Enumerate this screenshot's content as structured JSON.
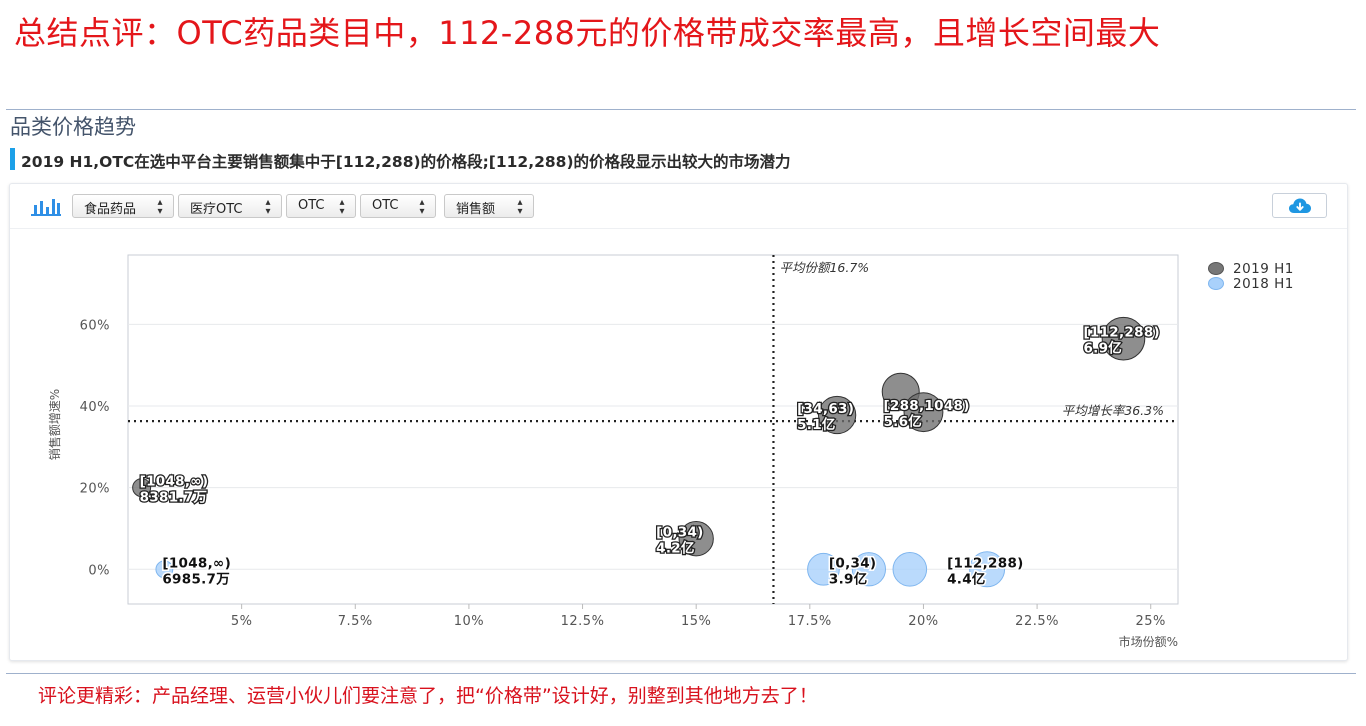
{
  "headline": "总结点评：OTC药品类目中，112-288元的价格带成交率最高，且增长空间最大",
  "section_title": "品类价格趋势",
  "subtitle": "2019 H1,OTC在选中平台主要销售额集中于[112,288)的价格段;[112,288)的价格段显示出较大的市场潜力",
  "toolbar": {
    "chart_icon": "bar-chart-icon",
    "filters": [
      "食品药品",
      "医疗OTC",
      "OTC",
      "OTC",
      "销售额"
    ],
    "download_icon": "cloud-download-icon"
  },
  "footer": "评论更精彩：产品经理、运营小伙儿们要注意了，把“价格带”设计好，别整到其他地方去了！",
  "colors": {
    "headline": "#e4161a",
    "accent": "#1ca0e8",
    "series_2019": "#6e6e6e",
    "series_2018": "#a9d1fb"
  },
  "chart_data": {
    "type": "scatter",
    "variant": "bubble",
    "xlabel": "市场份额%",
    "ylabel": "销售额增速%",
    "x_ticks": [
      "5%",
      "7.5%",
      "10%",
      "12.5%",
      "15%",
      "17.5%",
      "20%",
      "22.5%",
      "25%"
    ],
    "y_ticks": [
      "0%",
      "20%",
      "40%",
      "60%"
    ],
    "xlim": [
      2.5,
      25.6
    ],
    "ylim": [
      -8.5,
      77
    ],
    "grid": "horizontal",
    "legend_position": "top-right",
    "reference_lines": [
      {
        "axis": "x",
        "value": 16.7,
        "label": "平均份额16.7%"
      },
      {
        "axis": "y",
        "value": 36.3,
        "label": "平均增长率36.3%"
      }
    ],
    "series": [
      {
        "name": "2019 H1",
        "points": [
          {
            "x": 15.0,
            "y": 7.5,
            "size": 4.2,
            "label": "[0,34)",
            "value_label": "4.2亿"
          },
          {
            "x": 18.1,
            "y": 37.8,
            "size": 5.1,
            "label": "[34,63)",
            "value_label": "5.1亿"
          },
          {
            "x": 19.5,
            "y": 43.5,
            "size": 5.0
          },
          {
            "x": 20.0,
            "y": 38.5,
            "size": 5.6,
            "label": "[288,1048)",
            "value_label": "5.6亿"
          },
          {
            "x": 24.4,
            "y": 56.5,
            "size": 6.9,
            "label": "[112,288)",
            "value_label": "6.9亿"
          },
          {
            "x": 2.8,
            "y": 20.0,
            "size": 0.8381,
            "label": "[1048,∞)",
            "value_label": "8381.7万"
          }
        ]
      },
      {
        "name": "2018 H1",
        "points": [
          {
            "x": 17.8,
            "y": 0.0,
            "size": 3.5
          },
          {
            "x": 18.8,
            "y": 0.0,
            "size": 3.9,
            "label": "[0,34)",
            "value_label": "3.9亿"
          },
          {
            "x": 19.7,
            "y": 0.0,
            "size": 4.0
          },
          {
            "x": 21.4,
            "y": 0.0,
            "size": 4.4,
            "label": "[112,288)",
            "value_label": "4.4亿"
          },
          {
            "x": 3.3,
            "y": 0.0,
            "size": 0.6986,
            "label": "[1048,∞)",
            "value_label": "6985.7万"
          }
        ]
      }
    ]
  }
}
